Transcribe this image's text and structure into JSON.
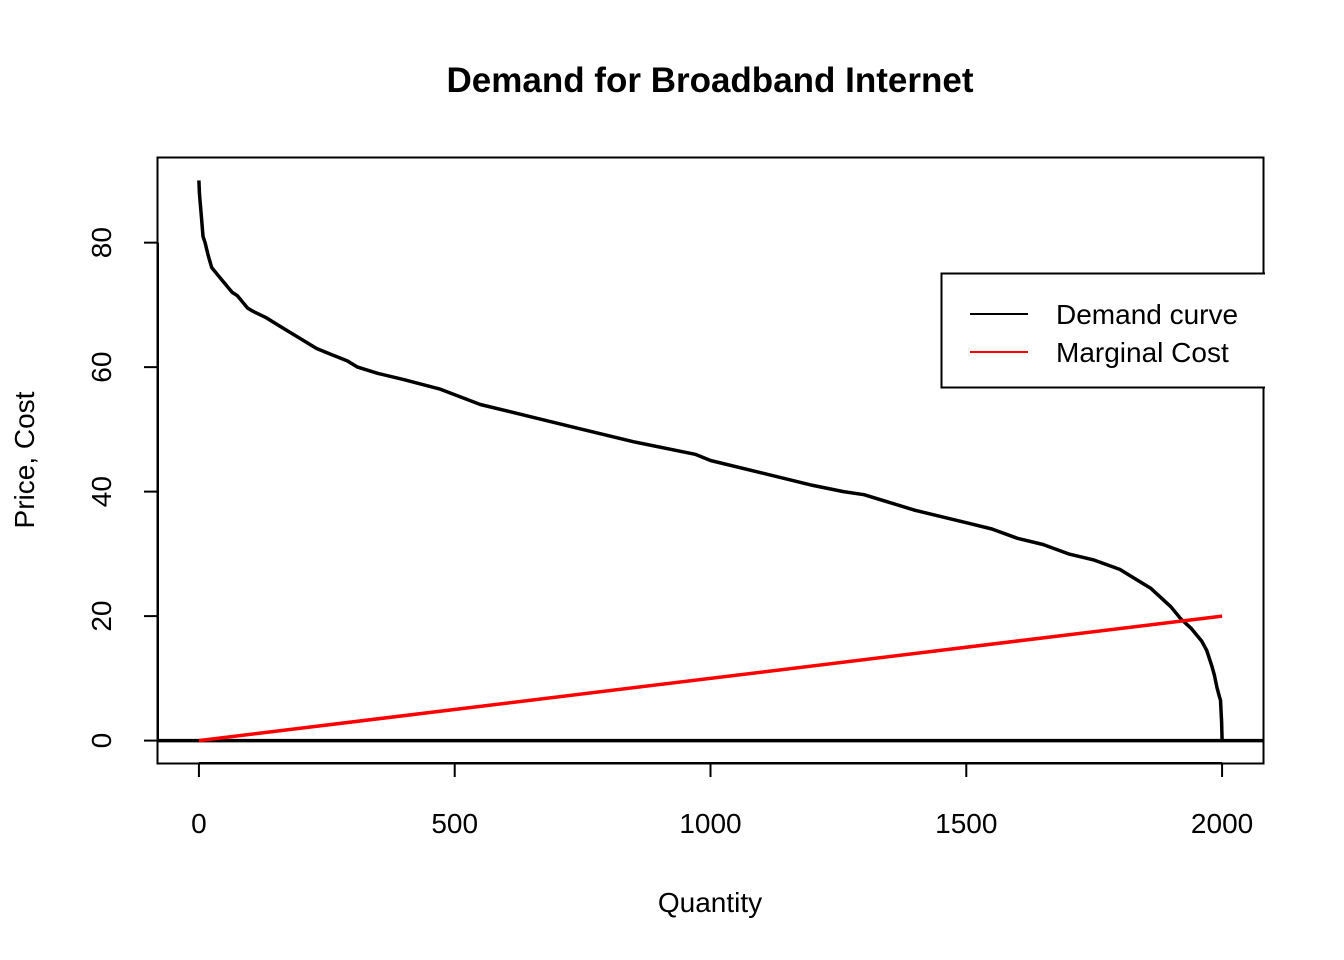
{
  "chart_data": {
    "type": "line",
    "title": "Demand for Broadband Internet",
    "xlabel": "Quantity",
    "ylabel": "Price,  Cost",
    "xlim": [
      -80,
      2080
    ],
    "ylim": [
      -3.6,
      93.6
    ],
    "x_ticks": [
      0,
      500,
      1000,
      1500,
      2000
    ],
    "y_ticks": [
      0,
      20,
      40,
      60,
      80
    ],
    "grid": false,
    "legend_position": "top-right",
    "series": [
      {
        "name": "Demand curve",
        "color": "#000000",
        "x": [
          0,
          1,
          2,
          5,
          8,
          12,
          18,
          25,
          35,
          45,
          55,
          65,
          75,
          85,
          95,
          105,
          130,
          160,
          200,
          230,
          260,
          290,
          310,
          350,
          400,
          470,
          550,
          650,
          750,
          850,
          970,
          1000,
          1100,
          1200,
          1260,
          1300,
          1400,
          1500,
          1550,
          1600,
          1650,
          1700,
          1750,
          1800,
          1830,
          1860,
          1880,
          1900,
          1920,
          1940,
          1960,
          1970,
          1980,
          1985,
          1990,
          1995,
          1997,
          1999,
          2000
        ],
        "y": [
          90,
          88,
          87,
          84,
          81,
          80,
          78,
          76,
          75,
          74,
          73,
          72,
          71.5,
          70.5,
          69.5,
          69,
          68,
          66.5,
          64.5,
          63,
          62,
          61,
          60,
          59,
          58,
          56.5,
          54,
          52,
          50,
          48,
          46,
          45,
          43,
          41,
          40,
          39.5,
          37,
          35,
          34,
          32.5,
          31.5,
          30,
          29,
          27.5,
          26,
          24.5,
          23,
          21.5,
          19.5,
          18,
          16,
          14.5,
          12,
          10.5,
          8.5,
          7,
          6.5,
          3,
          0
        ]
      },
      {
        "name": "Marginal Cost",
        "color": "#ff0000",
        "x": [
          0,
          2000
        ],
        "y": [
          0,
          20
        ]
      }
    ],
    "hlines": [
      0
    ]
  }
}
